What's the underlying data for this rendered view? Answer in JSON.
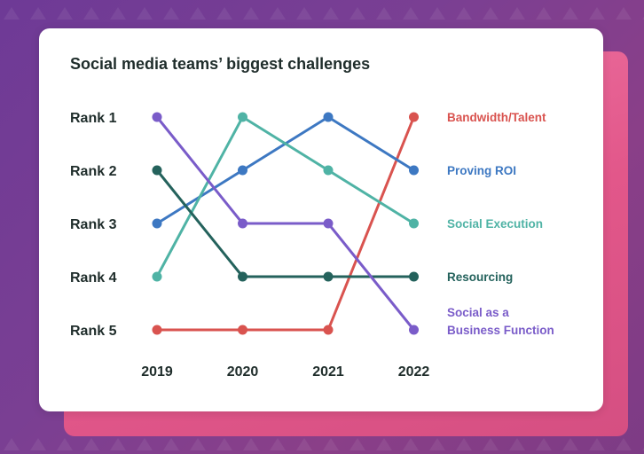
{
  "chart_data": {
    "type": "line",
    "title": "Social media teams’ biggest challenges",
    "x": [
      "2019",
      "2020",
      "2021",
      "2022"
    ],
    "y_categories": [
      "Rank 1",
      "Rank 2",
      "Rank 3",
      "Rank 4",
      "Rank 5"
    ],
    "ylim": [
      1,
      5
    ],
    "y_inverted": true,
    "series": [
      {
        "name": "Bandwidth/Talent",
        "label_lines": [
          "Bandwidth/Talent"
        ],
        "color": "#d9534f",
        "values": [
          5,
          5,
          5,
          1
        ]
      },
      {
        "name": "Proving ROI",
        "label_lines": [
          "Proving ROI"
        ],
        "color": "#3d78c2",
        "values": [
          3,
          2,
          1,
          2
        ]
      },
      {
        "name": "Social Execution",
        "label_lines": [
          "Social Execution"
        ],
        "color": "#4fb3a5",
        "values": [
          4,
          1,
          2,
          3
        ]
      },
      {
        "name": "Resourcing",
        "label_lines": [
          "Resourcing"
        ],
        "color": "#24625c",
        "values": [
          2,
          4,
          4,
          4
        ]
      },
      {
        "name": "Social as a Business Function",
        "label_lines": [
          "Social as a",
          "Business Function"
        ],
        "color": "#7a5cc9",
        "values": [
          1,
          3,
          3,
          5
        ]
      }
    ],
    "legend": "right-end-labels",
    "grid": false
  }
}
